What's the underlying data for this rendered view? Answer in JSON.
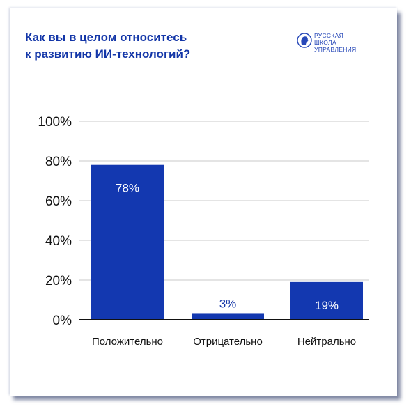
{
  "header": {
    "title_lines": [
      "Как вы в целом относитесь",
      "к развитию ИИ-технологий?"
    ]
  },
  "logo": {
    "lines": [
      "РУССКАЯ",
      "ШКОЛА",
      "УПРАВЛЕНИЯ"
    ],
    "icon": "profile-head-emblem-icon"
  },
  "colors": {
    "accent": "#1336a8",
    "bar": "#1338b0",
    "grid": "#c9c9c9",
    "axis": "#111111",
    "text": "#111111"
  },
  "chart_data": {
    "type": "bar",
    "title": "Как вы в целом относитесь к развитию ИИ-технологий?",
    "categories": [
      "Положительно",
      "Отрицательно",
      "Нейтрально"
    ],
    "values": [
      78,
      3,
      19
    ],
    "data_labels": [
      "78%",
      "3%",
      "19%"
    ],
    "ylim": [
      0,
      100
    ],
    "yticks": [
      0,
      20,
      40,
      60,
      80,
      100
    ],
    "ytick_labels": [
      "0%",
      "20%",
      "40%",
      "60%",
      "80%",
      "100%"
    ],
    "xlabel": "",
    "ylabel": "",
    "grid": true,
    "legend": "none"
  }
}
